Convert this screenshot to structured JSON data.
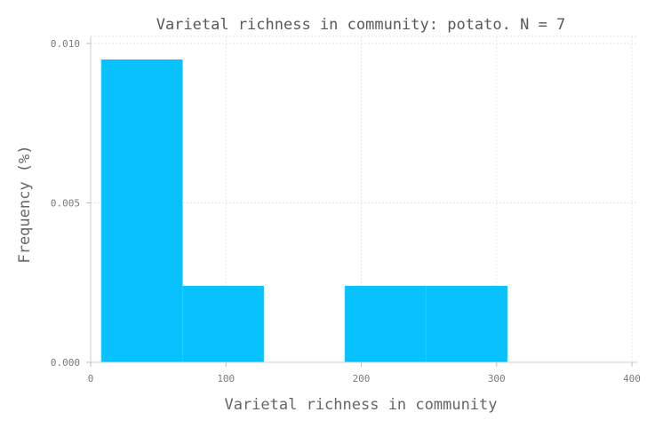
{
  "chart_data": {
    "type": "bar",
    "subtype": "histogram",
    "title": "Varietal richness in community: potato. N = 7",
    "xlabel": "Varietal richness in community",
    "ylabel": "Frequency (%)",
    "xlim": [
      0,
      400
    ],
    "ylim": [
      0,
      0.01
    ],
    "x_ticks": [
      "0",
      "100",
      "200",
      "300",
      "400"
    ],
    "x_tick_values": [
      0,
      100,
      200,
      300,
      400
    ],
    "y_ticks": [
      "0.000",
      "0.005",
      "0.010"
    ],
    "y_tick_values": [
      0,
      0.005,
      0.01
    ],
    "grid": true,
    "bar_color": "#00bfff",
    "bins": [
      {
        "x0": 8,
        "x1": 68,
        "value": 0.0095
      },
      {
        "x0": 68,
        "x1": 128,
        "value": 0.0024
      },
      {
        "x0": 128,
        "x1": 188,
        "value": 0
      },
      {
        "x0": 188,
        "x1": 248,
        "value": 0.0024
      },
      {
        "x0": 248,
        "x1": 308,
        "value": 0.0024
      }
    ]
  }
}
